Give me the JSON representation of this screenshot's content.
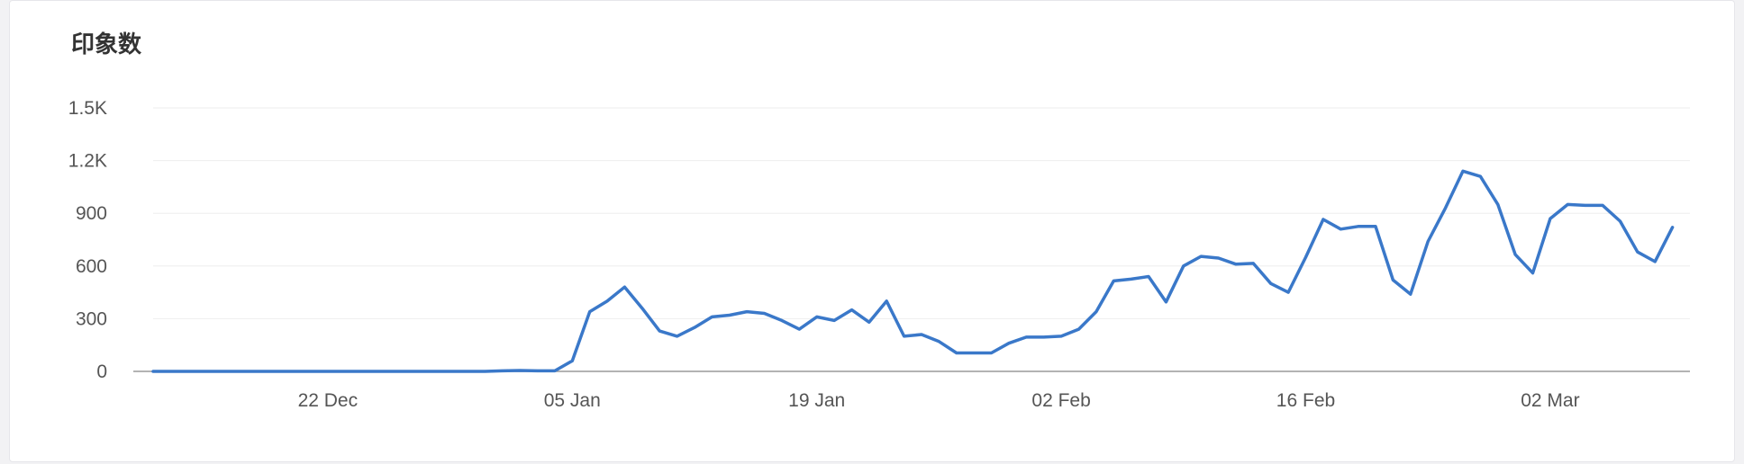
{
  "panel": {
    "title": "印象数"
  },
  "colors": {
    "line": "#3a78c9",
    "grid": "#eeeeee",
    "axis": "#9a9a9a",
    "tick_text": "#555555"
  },
  "chart_data": {
    "type": "line",
    "title": "印象数",
    "xlabel": "",
    "ylabel": "",
    "ylim": [
      0,
      1500
    ],
    "yticks": [
      0,
      300,
      600,
      900,
      1200,
      1500
    ],
    "ytick_labels": [
      "0",
      "300",
      "600",
      "900",
      "1.2K",
      "1.5K"
    ],
    "xlim": [
      "2025-12-12",
      "2026-03-10"
    ],
    "xticks": [
      "2025-12-22",
      "2026-01-05",
      "2026-01-19",
      "2026-02-02",
      "2026-02-16",
      "2026-03-02"
    ],
    "xtick_labels": [
      "22 Dec",
      "05 Jan",
      "19 Jan",
      "02 Feb",
      "16 Feb",
      "02 Mar"
    ],
    "grid": true,
    "series": [
      {
        "points": [
          [
            "2025-12-12",
            0
          ],
          [
            "2025-12-31",
            0
          ],
          [
            "2026-01-01",
            3
          ],
          [
            "2026-01-02",
            5
          ],
          [
            "2026-01-03",
            3
          ],
          [
            "2026-01-04",
            3
          ],
          [
            "2026-01-05",
            60
          ],
          [
            "2026-01-06",
            340
          ],
          [
            "2026-01-07",
            400
          ],
          [
            "2026-01-08",
            480
          ],
          [
            "2026-01-09",
            360
          ],
          [
            "2026-01-10",
            230
          ],
          [
            "2026-01-11",
            200
          ],
          [
            "2026-01-12",
            250
          ],
          [
            "2026-01-13",
            310
          ],
          [
            "2026-01-14",
            320
          ],
          [
            "2026-01-15",
            340
          ],
          [
            "2026-01-16",
            330
          ],
          [
            "2026-01-17",
            290
          ],
          [
            "2026-01-18",
            240
          ],
          [
            "2026-01-19",
            310
          ],
          [
            "2026-01-20",
            290
          ],
          [
            "2026-01-21",
            350
          ],
          [
            "2026-01-22",
            280
          ],
          [
            "2026-01-23",
            400
          ],
          [
            "2026-01-24",
            200
          ],
          [
            "2026-01-25",
            210
          ],
          [
            "2026-01-26",
            170
          ],
          [
            "2026-01-27",
            105
          ],
          [
            "2026-01-28",
            105
          ],
          [
            "2026-01-29",
            105
          ],
          [
            "2026-01-30",
            160
          ],
          [
            "2026-01-31",
            195
          ],
          [
            "2026-02-01",
            195
          ],
          [
            "2026-02-02",
            200
          ],
          [
            "2026-02-03",
            240
          ],
          [
            "2026-02-04",
            340
          ],
          [
            "2026-02-05",
            515
          ],
          [
            "2026-02-06",
            525
          ],
          [
            "2026-02-07",
            540
          ],
          [
            "2026-02-08",
            395
          ],
          [
            "2026-02-09",
            600
          ],
          [
            "2026-02-10",
            655
          ],
          [
            "2026-02-11",
            645
          ],
          [
            "2026-02-12",
            610
          ],
          [
            "2026-02-13",
            615
          ],
          [
            "2026-02-14",
            500
          ],
          [
            "2026-02-15",
            450
          ],
          [
            "2026-02-16",
            650
          ],
          [
            "2026-02-17",
            865
          ],
          [
            "2026-02-18",
            810
          ],
          [
            "2026-02-19",
            825
          ],
          [
            "2026-02-20",
            825
          ],
          [
            "2026-02-21",
            520
          ],
          [
            "2026-02-22",
            440
          ],
          [
            "2026-02-23",
            740
          ],
          [
            "2026-02-24",
            930
          ],
          [
            "2026-02-25",
            1140
          ],
          [
            "2026-02-26",
            1110
          ],
          [
            "2026-02-27",
            950
          ],
          [
            "2026-02-28",
            665
          ],
          [
            "2026-03-01",
            560
          ],
          [
            "2026-03-02",
            870
          ],
          [
            "2026-03-03",
            950
          ],
          [
            "2026-03-04",
            945
          ],
          [
            "2026-03-05",
            945
          ],
          [
            "2026-03-06",
            855
          ],
          [
            "2026-03-07",
            680
          ],
          [
            "2026-03-08",
            625
          ],
          [
            "2026-03-09",
            820
          ]
        ]
      }
    ]
  }
}
